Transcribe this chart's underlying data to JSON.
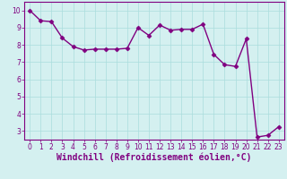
{
  "x": [
    0,
    1,
    2,
    3,
    4,
    5,
    6,
    7,
    8,
    9,
    10,
    11,
    12,
    13,
    14,
    15,
    16,
    17,
    18,
    19,
    20,
    21,
    22,
    23
  ],
  "y": [
    10.0,
    9.4,
    9.35,
    8.4,
    7.9,
    7.7,
    7.75,
    7.75,
    7.75,
    7.8,
    9.0,
    8.55,
    9.15,
    8.85,
    8.9,
    8.9,
    9.2,
    7.45,
    6.85,
    6.75,
    8.35,
    2.65,
    2.75,
    3.25
  ],
  "line_color": "#800080",
  "marker": "D",
  "markersize": 2.5,
  "linewidth": 1.0,
  "xlabel": "Windchill (Refroidissement éolien,°C)",
  "xlim": [
    -0.5,
    23.5
  ],
  "ylim": [
    2.5,
    10.5
  ],
  "yticks": [
    3,
    4,
    5,
    6,
    7,
    8,
    9,
    10
  ],
  "xticks": [
    0,
    1,
    2,
    3,
    4,
    5,
    6,
    7,
    8,
    9,
    10,
    11,
    12,
    13,
    14,
    15,
    16,
    17,
    18,
    19,
    20,
    21,
    22,
    23
  ],
  "bg_color": "#d4f0f0",
  "grid_color": "#aadddd",
  "tick_color": "#800080",
  "label_color": "#800080",
  "tick_fontsize": 5.5,
  "xlabel_fontsize": 7.0
}
